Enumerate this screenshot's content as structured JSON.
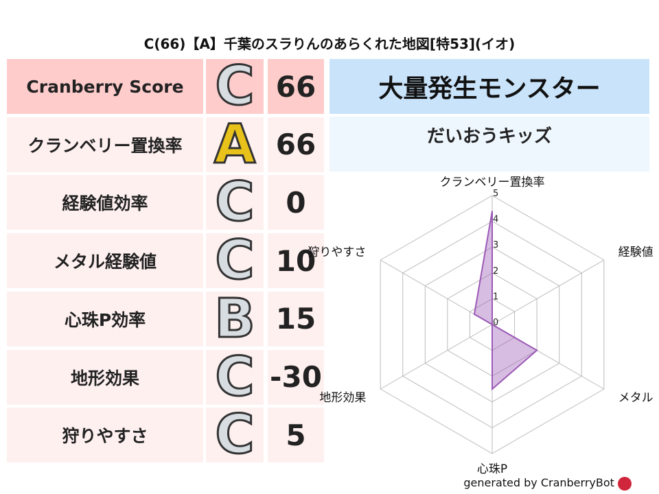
{
  "title": "C(66)【A】千葉のスラりんのあらくれた地図[特53](イオ)",
  "rows": [
    {
      "label": "Cranberry Score",
      "grade": "C",
      "value": "66"
    },
    {
      "label": "クランベリー置換率",
      "grade": "A",
      "value": "66"
    },
    {
      "label": "経験値効率",
      "grade": "C",
      "value": "0"
    },
    {
      "label": "メタル経験値",
      "grade": "C",
      "value": "10"
    },
    {
      "label": "心珠P効率",
      "grade": "B",
      "value": "15"
    },
    {
      "label": "地形効果",
      "grade": "C",
      "value": "-30"
    },
    {
      "label": "狩りやすさ",
      "grade": "C",
      "value": "5"
    }
  ],
  "header": "大量発生モンスター",
  "monster": "だいおうキッズ",
  "footer": "generated by CranberryBot",
  "colors": {
    "score_row": "#ffcccc",
    "rows": "#fff0f0",
    "header": "#c9e3fb",
    "sub": "#eef6fe",
    "radar": "#9b59b6"
  },
  "chart_data": {
    "type": "radar",
    "axes": [
      "クランベリー置換率",
      "経験値",
      "メタル",
      "心珠P",
      "地形効果",
      "狩りやすさ"
    ],
    "values": [
      4.4,
      0,
      2.0,
      2.5,
      0,
      0.8
    ],
    "rlim": [
      0,
      5
    ],
    "ticks": [
      "0",
      "1",
      "2",
      "3",
      "4",
      "5"
    ]
  }
}
